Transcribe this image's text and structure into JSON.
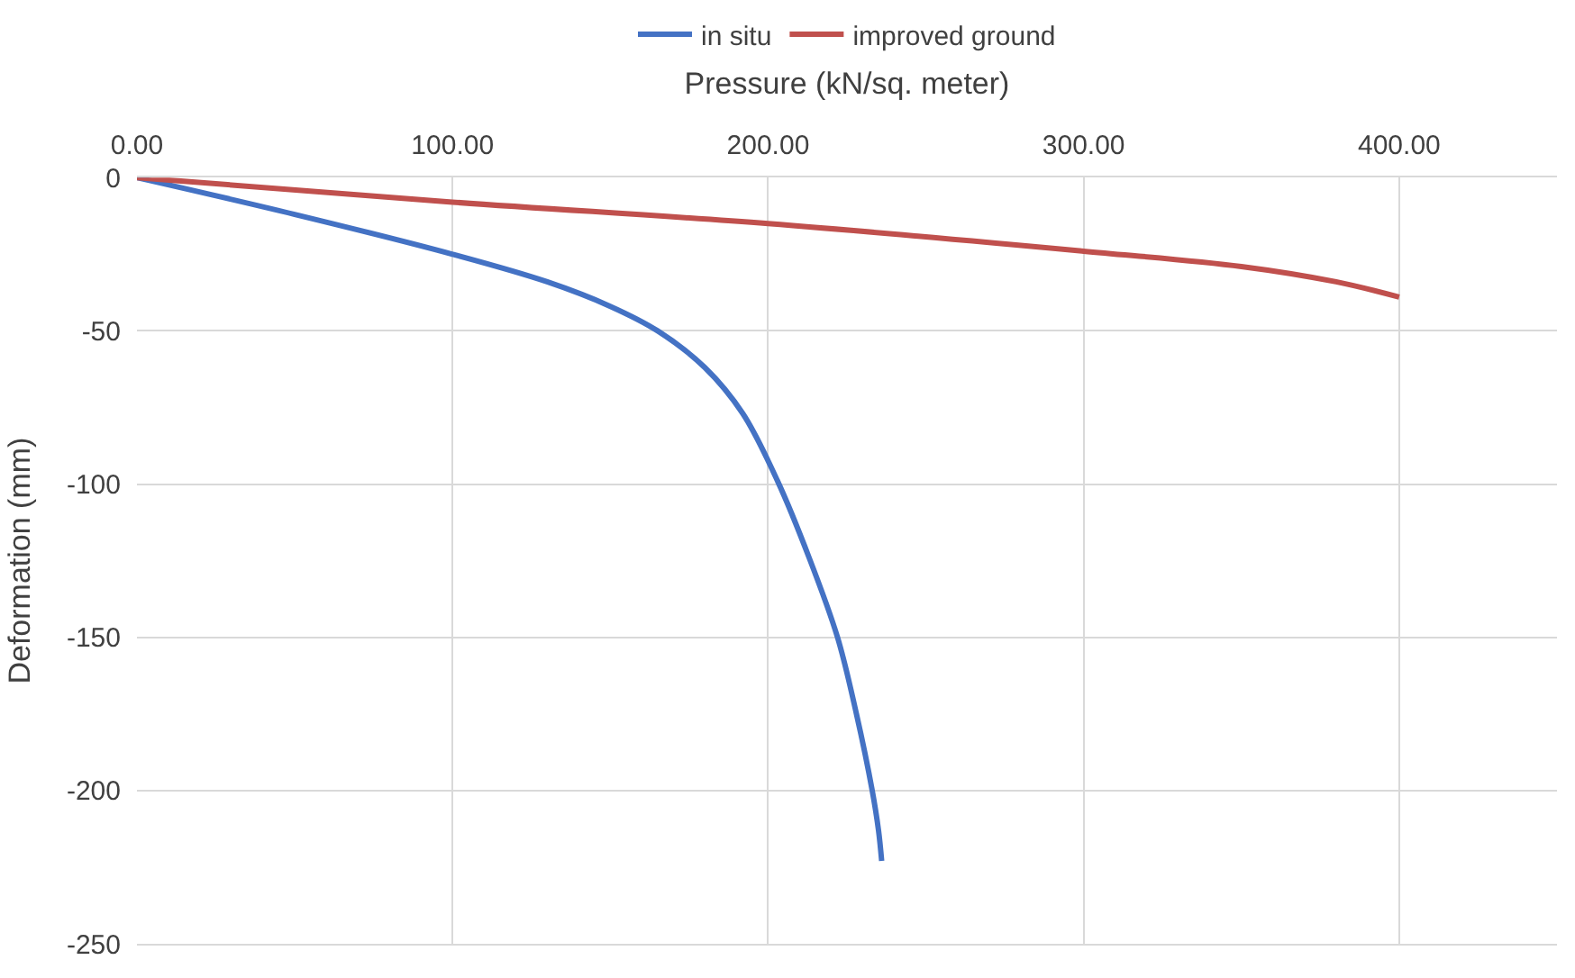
{
  "chart_data": {
    "type": "line",
    "xlabel": "Pressure (kN/sq. meter)",
    "ylabel": "Deformation (mm)",
    "xlim": [
      0,
      450
    ],
    "xticks": [
      {
        "value": 0,
        "label": "0.00"
      },
      {
        "value": 100,
        "label": "100.00"
      },
      {
        "value": 200,
        "label": "200.00"
      },
      {
        "value": 300,
        "label": "300.00"
      },
      {
        "value": 400,
        "label": "400.00"
      }
    ],
    "ylim": [
      -250,
      0
    ],
    "yticks": [
      -250,
      -200,
      -150,
      -100,
      -50,
      0
    ],
    "grid": true,
    "legend": "top",
    "marker": "none",
    "line_style": "solid",
    "series": [
      {
        "name": "in situ",
        "color": "#4472c4",
        "x": [
          0,
          50,
          100,
          130,
          150,
          165,
          180,
          192,
          203,
          213,
          222,
          228,
          233,
          235,
          236
        ],
        "values": [
          0,
          -12,
          -25,
          -34,
          -42,
          -50,
          -62,
          -77,
          -99,
          -124,
          -150,
          -175,
          -200,
          -213,
          -223
        ]
      },
      {
        "name": "improved ground",
        "color": "#c0504d",
        "x": [
          0,
          100,
          200,
          300,
          350,
          380,
          400
        ],
        "values": [
          0,
          -8,
          -15,
          -24,
          -29,
          -34,
          -39
        ]
      }
    ]
  }
}
